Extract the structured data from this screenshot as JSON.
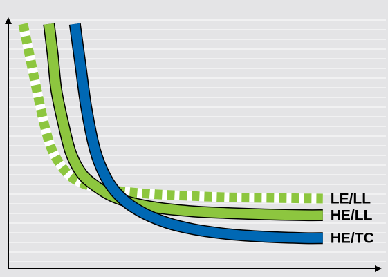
{
  "chart_data": {
    "type": "line",
    "title": "",
    "xlabel": "",
    "ylabel": "",
    "x_ticks": "none",
    "y_ticks": "none",
    "grid": "horizontal lines",
    "legend": "labels at right end of each line",
    "xlim": [
      0,
      100
    ],
    "ylim": [
      0,
      100
    ],
    "series": [
      {
        "name": "LE/LL",
        "color": "#8dc63f",
        "style": "dashed",
        "x": [
          4,
          6,
          8,
          10,
          12,
          15,
          18,
          22,
          27,
          33,
          40,
          50,
          60,
          70,
          80,
          85
        ],
        "y": [
          96,
          82,
          68,
          55,
          46,
          39,
          35,
          32.5,
          31,
          30,
          29.2,
          28.5,
          28,
          27.8,
          27.6,
          27.5
        ]
      },
      {
        "name": "HE/LL",
        "color": "#8dc63f",
        "style": "solid",
        "x": [
          11,
          12,
          13,
          15,
          17,
          20,
          24,
          28,
          33,
          40,
          50,
          60,
          70,
          80,
          85
        ],
        "y": [
          96,
          84,
          70,
          56,
          45,
          37,
          32,
          28.5,
          26,
          24,
          22.5,
          21.8,
          21.3,
          21,
          21
        ]
      },
      {
        "name": "HE/TC",
        "color": "#0068b4",
        "style": "solid",
        "x": [
          18,
          19.5,
          21,
          23,
          25,
          28,
          32,
          37,
          43,
          50,
          60,
          70,
          80,
          85
        ],
        "y": [
          96,
          80,
          64,
          49,
          40,
          32,
          26,
          21.5,
          18,
          15.5,
          13.5,
          12.5,
          12,
          12
        ]
      }
    ]
  }
}
